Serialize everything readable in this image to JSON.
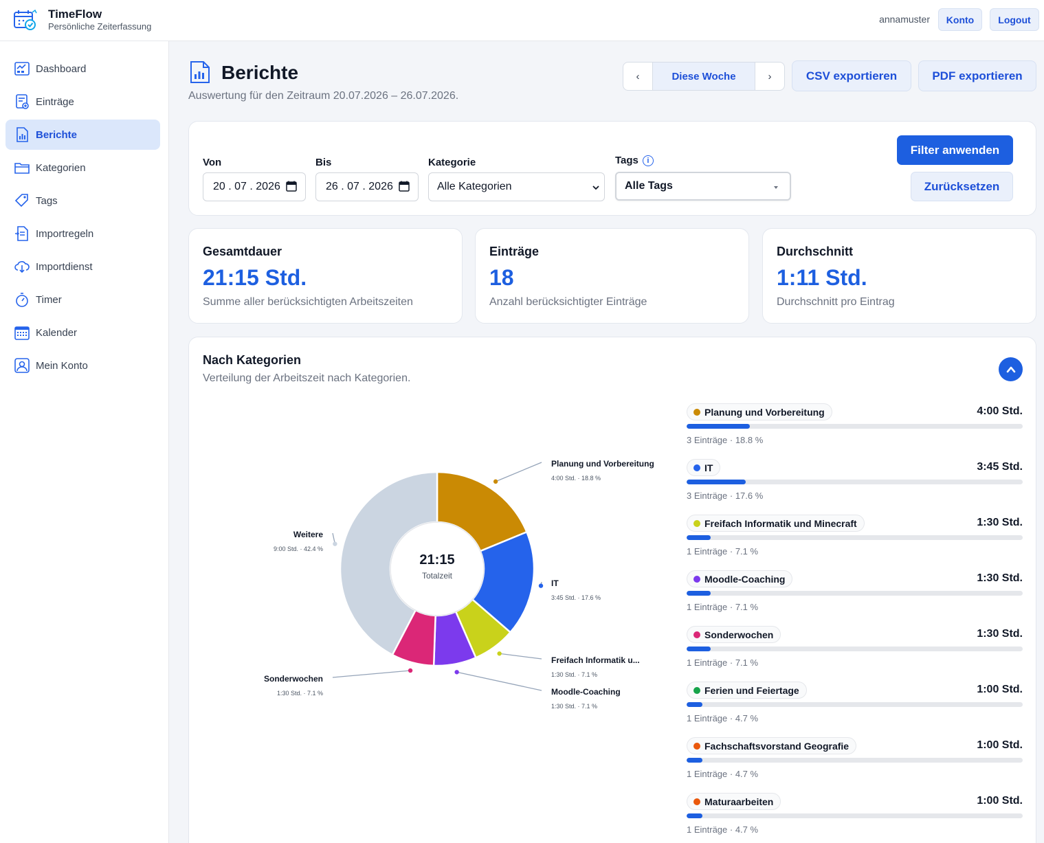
{
  "app": {
    "title": "TimeFlow",
    "subtitle": "Persönliche Zeiterfassung"
  },
  "header": {
    "username": "annamuster",
    "konto_label": "Konto",
    "logout_label": "Logout"
  },
  "sidebar": {
    "items": [
      {
        "label": "Dashboard",
        "icon": "dashboard-icon",
        "active": false
      },
      {
        "label": "Einträge",
        "icon": "entries-icon",
        "active": false
      },
      {
        "label": "Berichte",
        "icon": "reports-icon",
        "active": true
      },
      {
        "label": "Kategorien",
        "icon": "folder-icon",
        "active": false
      },
      {
        "label": "Tags",
        "icon": "tag-icon",
        "active": false
      },
      {
        "label": "Importregeln",
        "icon": "import-rules-icon",
        "active": false
      },
      {
        "label": "Importdienst",
        "icon": "cloud-download-icon",
        "active": false
      },
      {
        "label": "Timer",
        "icon": "stopwatch-icon",
        "active": false
      },
      {
        "label": "Kalender",
        "icon": "calendar-icon",
        "active": false
      },
      {
        "label": "Mein Konto",
        "icon": "user-icon",
        "active": false
      }
    ]
  },
  "page": {
    "title": "Berichte",
    "subtitle": "Auswertung für den Zeitraum 20.07.2026 – 26.07.2026.",
    "period": {
      "prev": "‹",
      "current": "Diese Woche",
      "next": "›"
    },
    "csv_label": "CSV exportieren",
    "pdf_label": "PDF exportieren"
  },
  "filters": {
    "from_label": "Von",
    "from_value": "20 . 07 . 2026",
    "to_label": "Bis",
    "to_value": "26 . 07 . 2026",
    "category_label": "Kategorie",
    "category_value": "Alle Kategorien",
    "tags_label": "Tags",
    "tags_info": "i",
    "tags_value": "Alle Tags",
    "apply_label": "Filter anwenden",
    "reset_label": "Zurücksetzen"
  },
  "stats": [
    {
      "title": "Gesamtdauer",
      "value": "21:15 Std.",
      "desc": "Summe aller berücksichtigten Arbeitszeiten"
    },
    {
      "title": "Einträge",
      "value": "18",
      "desc": "Anzahl berücksichtigter Einträge"
    },
    {
      "title": "Durchschnitt",
      "value": "1:11 Std.",
      "desc": "Durchschnitt pro Eintrag"
    }
  ],
  "categories_section": {
    "title": "Nach Kategorien",
    "subtitle": "Verteilung der Arbeitszeit nach Kategorien."
  },
  "chart_data": {
    "type": "pie",
    "center_value": "21:15",
    "center_label": "Totalzeit",
    "slices": [
      {
        "name": "Planung und Vorbereitung",
        "label": "Planung und Vorbereitung",
        "detail": "4:00 Std. · 18.8 %",
        "percent": 18.8,
        "color": "#ca8a04"
      },
      {
        "name": "IT",
        "label": "IT",
        "detail": "3:45 Std. · 17.6 %",
        "percent": 17.6,
        "color": "#2563eb"
      },
      {
        "name": "Freifach Informatik und Minecraft",
        "label": "Freifach Informatik u...",
        "detail": "1:30 Std. · 7.1 %",
        "percent": 7.1,
        "color": "#c9d21b"
      },
      {
        "name": "Moodle-Coaching",
        "label": "Moodle-Coaching",
        "detail": "1:30 Std. · 7.1 %",
        "percent": 7.1,
        "color": "#7c3aed"
      },
      {
        "name": "Sonderwochen",
        "label": "Sonderwochen",
        "detail": "1:30 Std. · 7.1 %",
        "percent": 7.1,
        "color": "#db2777"
      },
      {
        "name": "Weitere",
        "label": "Weitere",
        "detail": "9:00 Std. · 42.4 %",
        "percent": 42.4,
        "color": "#cbd5e1"
      }
    ]
  },
  "category_list": [
    {
      "name": "Planung und Vorbereitung",
      "duration": "4:00 Std.",
      "meta": "3 Einträge · 18.8 %",
      "share": 0.188,
      "color": "#ca8a04"
    },
    {
      "name": "IT",
      "duration": "3:45 Std.",
      "meta": "3 Einträge · 17.6 %",
      "share": 0.176,
      "color": "#2563eb"
    },
    {
      "name": "Freifach Informatik und Minecraft",
      "duration": "1:30 Std.",
      "meta": "1 Einträge · 7.1 %",
      "share": 0.071,
      "color": "#c9d21b"
    },
    {
      "name": "Moodle-Coaching",
      "duration": "1:30 Std.",
      "meta": "1 Einträge · 7.1 %",
      "share": 0.071,
      "color": "#7c3aed"
    },
    {
      "name": "Sonderwochen",
      "duration": "1:30 Std.",
      "meta": "1 Einträge · 7.1 %",
      "share": 0.071,
      "color": "#db2777"
    },
    {
      "name": "Ferien und Feiertage",
      "duration": "1:00 Std.",
      "meta": "1 Einträge · 4.7 %",
      "share": 0.047,
      "color": "#16a34a"
    },
    {
      "name": "Fachschaftsvorstand Geografie",
      "duration": "1:00 Std.",
      "meta": "1 Einträge · 4.7 %",
      "share": 0.047,
      "color": "#ea580c"
    },
    {
      "name": "Maturaarbeiten",
      "duration": "1:00 Std.",
      "meta": "1 Einträge · 4.7 %",
      "share": 0.047,
      "color": "#ea580c"
    }
  ]
}
